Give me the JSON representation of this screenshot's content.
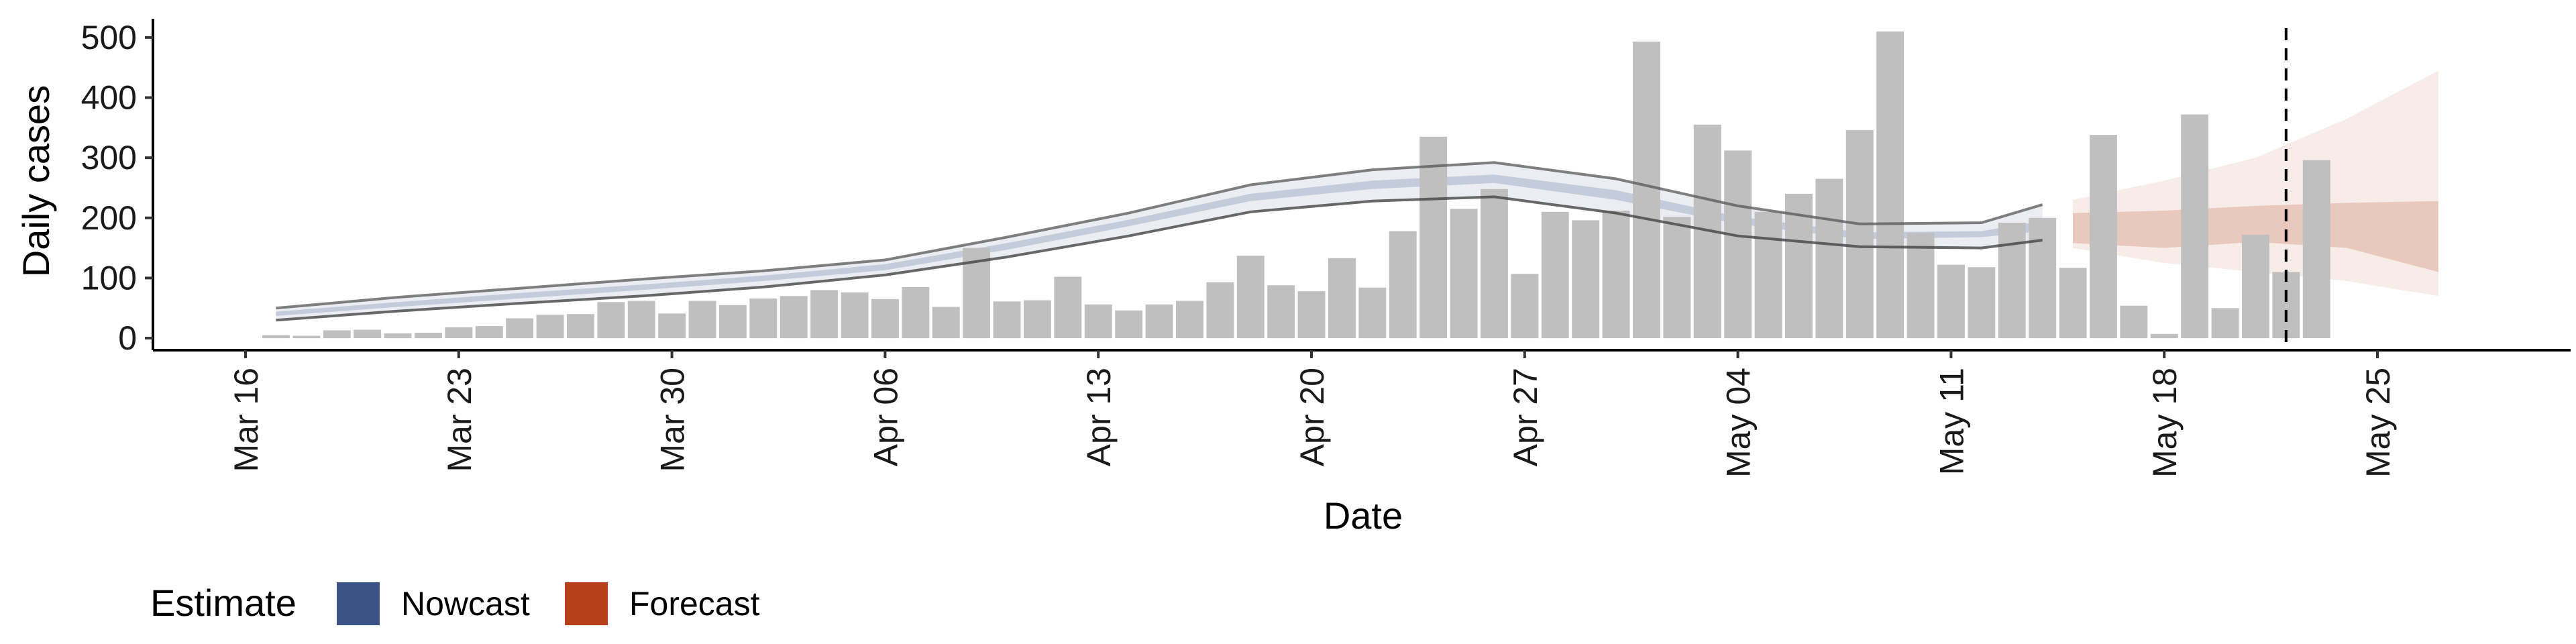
{
  "chart_data": {
    "type": "bar",
    "xlabel": "Date",
    "ylabel": "Daily cases",
    "ylim": [
      -20,
      540
    ],
    "yticks": [
      0,
      100,
      200,
      300,
      400,
      500
    ],
    "x_range": [
      "2020-03-16",
      "2020-05-31"
    ],
    "xticks": [
      {
        "date": "2020-03-16",
        "label": "Mar 16"
      },
      {
        "date": "2020-03-23",
        "label": "Mar 23"
      },
      {
        "date": "2020-03-30",
        "label": "Mar 30"
      },
      {
        "date": "2020-04-06",
        "label": "Apr 06"
      },
      {
        "date": "2020-04-13",
        "label": "Apr 13"
      },
      {
        "date": "2020-04-20",
        "label": "Apr 20"
      },
      {
        "date": "2020-04-27",
        "label": "Apr 27"
      },
      {
        "date": "2020-05-04",
        "label": "May 04"
      },
      {
        "date": "2020-05-11",
        "label": "May 11"
      },
      {
        "date": "2020-05-18",
        "label": "May 18"
      },
      {
        "date": "2020-05-25",
        "label": "May 25"
      }
    ],
    "bar_dates_start": "2020-03-17",
    "bar_values": [
      5,
      4,
      13,
      14,
      8,
      9,
      18,
      20,
      33,
      39,
      40,
      60,
      62,
      41,
      62,
      55,
      66,
      70,
      80,
      76,
      65,
      85,
      52,
      150,
      61,
      63,
      102,
      56,
      46,
      56,
      62,
      93,
      137,
      88,
      78,
      133,
      84,
      178,
      335,
      215,
      248,
      107,
      210,
      196,
      212,
      493,
      202,
      355,
      312,
      210,
      240,
      265,
      346,
      510,
      175,
      122,
      118,
      192,
      200,
      117,
      338,
      54,
      7,
      372,
      50,
      172,
      110,
      296
    ],
    "bar_color": "#bfbfbf",
    "nowcast": {
      "name": "Nowcast",
      "color": "#3b5286",
      "x": [
        "2020-03-17",
        "2020-03-21",
        "2020-03-25",
        "2020-03-29",
        "2020-04-02",
        "2020-04-06",
        "2020-04-10",
        "2020-04-14",
        "2020-04-18",
        "2020-04-22",
        "2020-04-26",
        "2020-04-30",
        "2020-05-04",
        "2020-05-08",
        "2020-05-12",
        "2020-05-14"
      ],
      "outer_lower": [
        30,
        45,
        58,
        70,
        85,
        105,
        135,
        170,
        210,
        228,
        235,
        208,
        170,
        152,
        150,
        163
      ],
      "outer_upper": [
        50,
        68,
        83,
        98,
        112,
        130,
        168,
        208,
        255,
        280,
        292,
        265,
        220,
        190,
        192,
        222
      ],
      "inner_lower": [
        37,
        52,
        66,
        80,
        95,
        113,
        147,
        186,
        228,
        248,
        258,
        230,
        190,
        165,
        168,
        178
      ],
      "inner_upper": [
        44,
        60,
        75,
        89,
        104,
        123,
        158,
        197,
        240,
        262,
        272,
        246,
        202,
        176,
        178,
        195
      ]
    },
    "forecast": {
      "name": "Forecast",
      "color": "#b5401a",
      "x": [
        "2020-05-15",
        "2020-05-18",
        "2020-05-21",
        "2020-05-24",
        "2020-05-27"
      ],
      "outer_lower": [
        150,
        125,
        110,
        95,
        70
      ],
      "outer_upper": [
        230,
        262,
        300,
        365,
        445
      ],
      "inner_lower": [
        158,
        150,
        160,
        150,
        110
      ],
      "inner_upper": [
        208,
        212,
        220,
        225,
        228
      ]
    },
    "vline_date": "2020-05-22",
    "legend": {
      "title": "Estimate",
      "position": "bottom-left",
      "entries": [
        {
          "label": "Nowcast",
          "color": "#3b5286"
        },
        {
          "label": "Forecast",
          "color": "#b5401a"
        }
      ]
    },
    "grid": false
  }
}
